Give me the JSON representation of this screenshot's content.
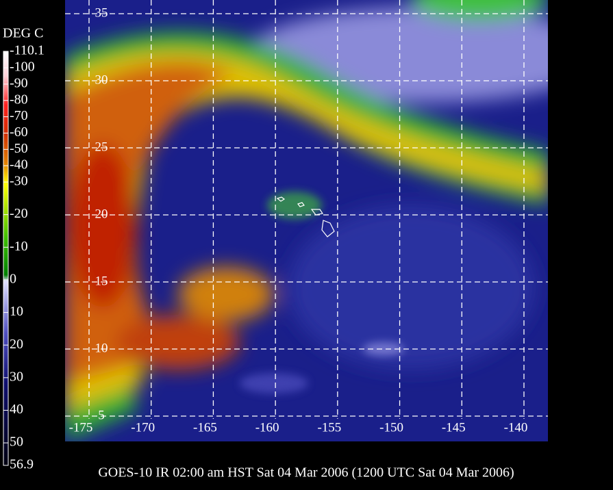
{
  "colorbar": {
    "title": "DEG C",
    "ticks": [
      {
        "value": -110.1,
        "label": "-110.1"
      },
      -100,
      -90,
      -80,
      -70,
      -60,
      -50,
      -40,
      -30,
      -20,
      -10,
      0,
      10,
      20,
      30,
      40,
      50,
      56.9
    ]
  },
  "map": {
    "lat_ticks": [
      35,
      30,
      25,
      20,
      15,
      10,
      5
    ],
    "lon_ticks": [
      -175,
      -170,
      -165,
      -160,
      -155,
      -150,
      -145,
      -140
    ]
  },
  "caption": "GOES-10 IR 02:00 am HST Sat 04 Mar 2006 (1200 UTC Sat 04 Mar 2006)"
}
